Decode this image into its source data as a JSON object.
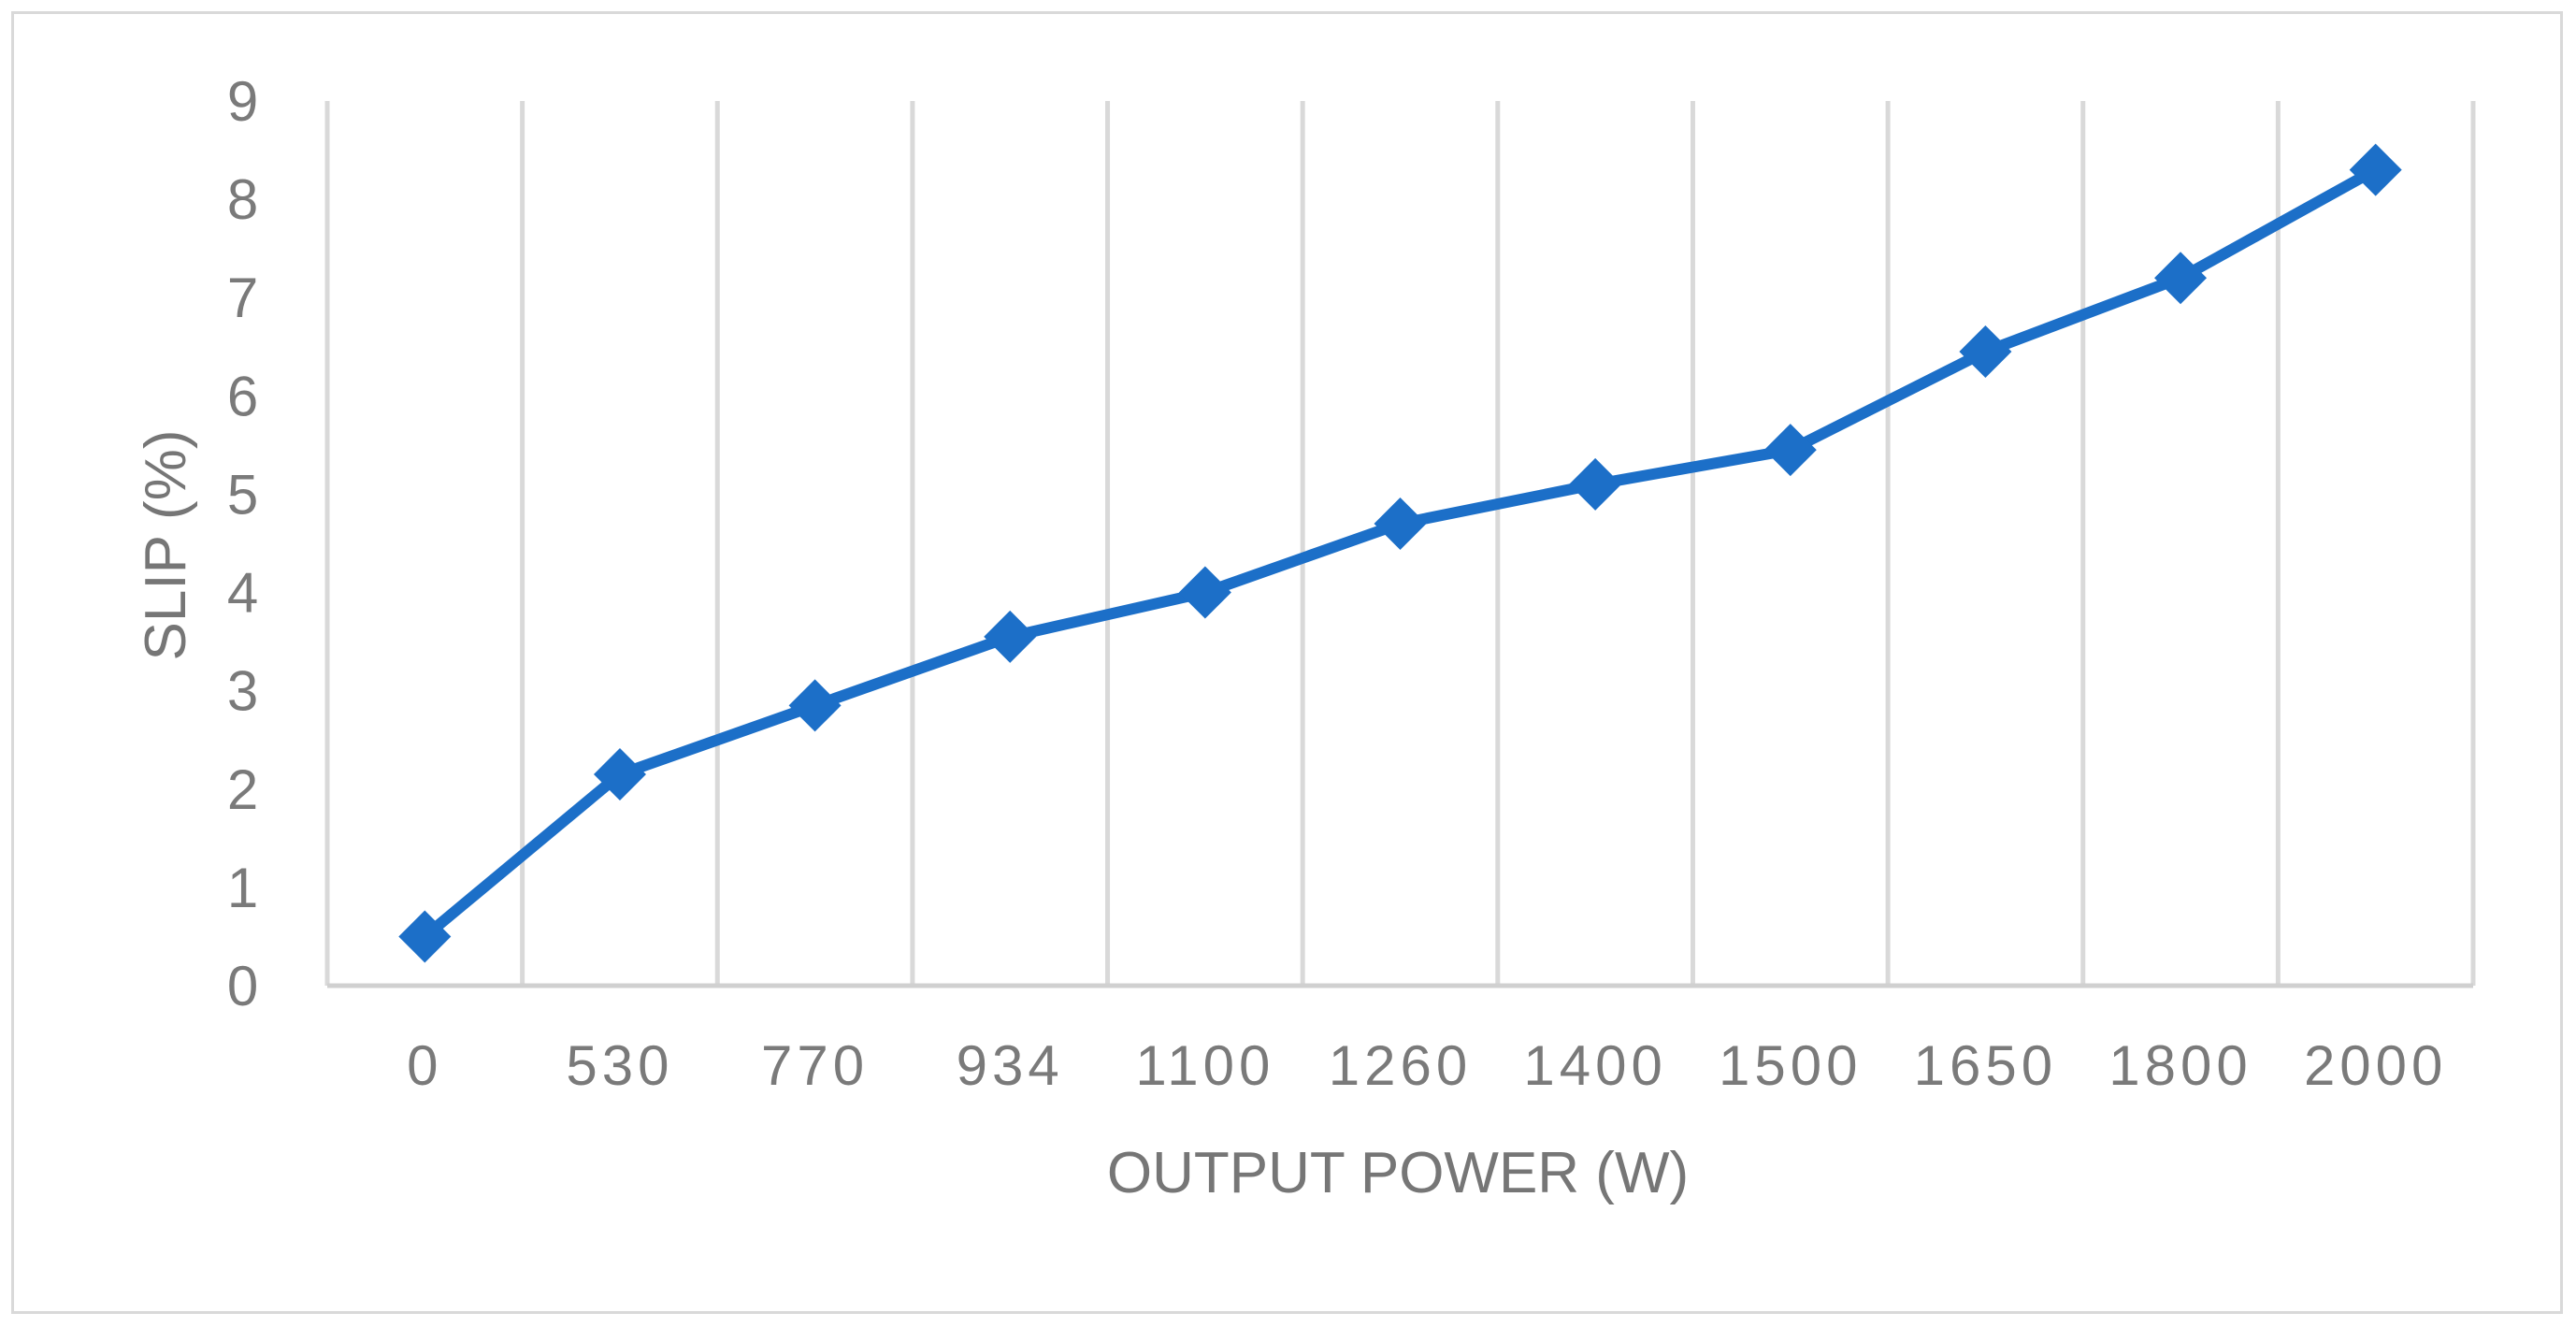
{
  "chart_data": {
    "type": "line",
    "title": "",
    "xlabel": "OUTPUT POWER (W)",
    "ylabel": "SLIP (%)",
    "categories": [
      "0",
      "530",
      "770",
      "934",
      "1100",
      "1260",
      "1400",
      "1500",
      "1650",
      "1800",
      "2000"
    ],
    "series": [
      {
        "values": [
          0.5,
          2.15,
          2.85,
          3.55,
          4.0,
          4.7,
          5.1,
          5.45,
          6.45,
          7.2,
          8.3
        ]
      }
    ],
    "ylim": [
      0,
      9
    ],
    "yticks": [
      0,
      1,
      2,
      3,
      4,
      5,
      6,
      7,
      8,
      9
    ],
    "grid": "vertical",
    "legend": "none",
    "colors": {
      "series": "#1c6fc8",
      "grid": "#d9d9d9",
      "text": "#7a7a7a"
    }
  }
}
